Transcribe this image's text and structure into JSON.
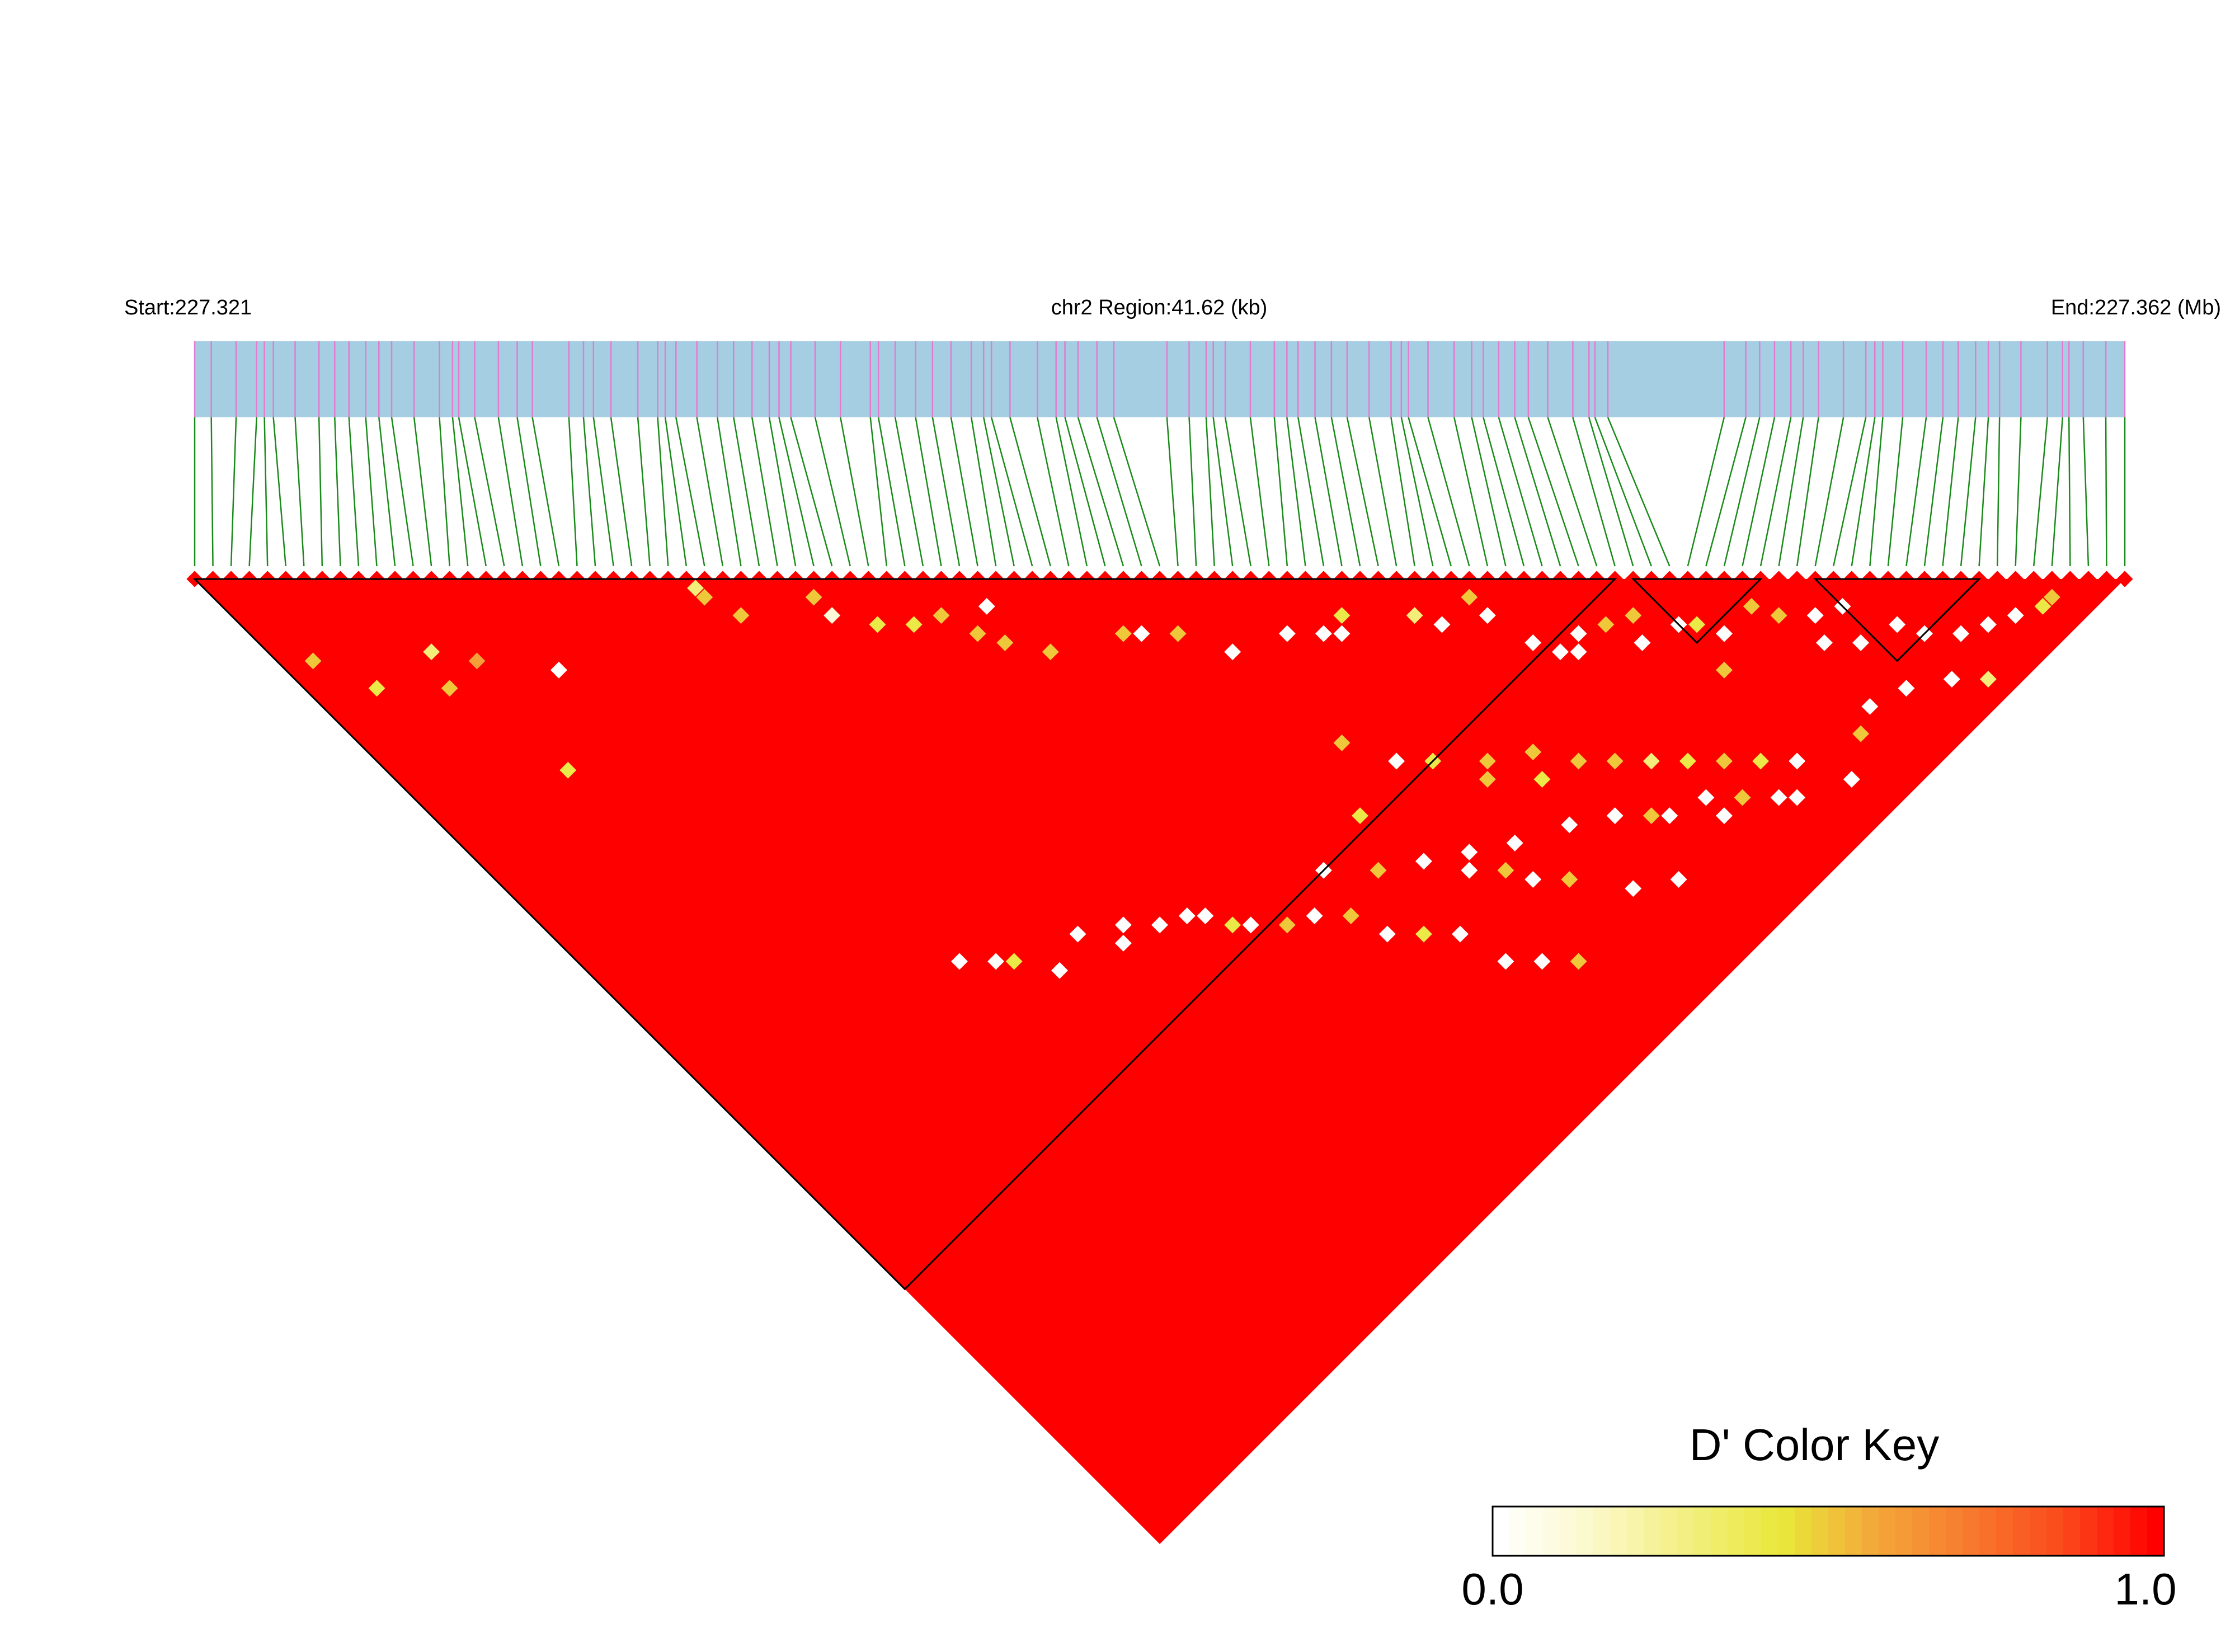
{
  "chart_data": {
    "type": "heatmap",
    "subtype": "linkage-disequilibrium-triangle",
    "region": {
      "start_label": "Start:227.321",
      "center_label": "chr2 Region:41.62 (kb)",
      "end_label": "End:227.362 (Mb)",
      "start_mb": 227.321,
      "end_mb": 227.362,
      "length_kb": 41.62,
      "chromosome": "chr2"
    },
    "snp_count": 107,
    "background_value": 1.0,
    "low_ld_cells": [
      [
        3,
        12,
        0.5
      ],
      [
        5,
        17,
        0.4
      ],
      [
        10,
        18,
        0.3
      ],
      [
        9,
        21,
        0.5
      ],
      [
        12,
        21,
        0.6
      ],
      [
        16,
        26,
        0.0
      ],
      [
        11,
        32,
        0.4
      ],
      [
        28,
        30,
        0.5
      ],
      [
        28,
        29,
        0.3
      ],
      [
        29,
        33,
        0.5
      ],
      [
        34,
        36,
        0.5
      ],
      [
        34,
        38,
        0.1
      ],
      [
        36,
        41,
        0.4
      ],
      [
        38,
        43,
        0.4
      ],
      [
        40,
        44,
        0.5
      ],
      [
        43,
        46,
        0.0
      ],
      [
        41,
        47,
        0.5
      ],
      [
        42,
        49,
        0.5
      ],
      [
        44,
        52,
        0.5
      ],
      [
        50,
        56,
        0.0
      ],
      [
        49,
        55,
        0.5
      ],
      [
        52,
        58,
        0.5
      ],
      [
        54,
        62,
        0.0
      ],
      [
        58,
        64,
        0.0
      ],
      [
        60,
        66,
        0.0
      ],
      [
        61,
        67,
        0.0
      ],
      [
        62,
        66,
        0.4
      ],
      [
        66,
        70,
        0.3
      ],
      [
        67,
        72,
        0.0
      ],
      [
        70,
        72,
        0.5
      ],
      [
        70,
        74,
        0.0
      ],
      [
        71,
        78,
        0.0
      ],
      [
        72,
        80,
        0.0
      ],
      [
        73,
        81,
        0.0
      ],
      [
        74,
        80,
        0.0
      ],
      [
        76,
        81,
        0.5
      ],
      [
        77,
        84,
        0.0
      ],
      [
        78,
        82,
        0.5
      ],
      [
        80,
        85,
        0.0
      ],
      [
        81,
        86,
        0.4
      ],
      [
        82,
        88,
        0.0
      ],
      [
        85,
        88,
        0.5
      ],
      [
        86,
        90,
        0.5
      ],
      [
        88,
        92,
        0.0
      ],
      [
        90,
        93,
        0.0
      ],
      [
        87,
        94,
        0.0
      ],
      [
        89,
        96,
        0.0
      ],
      [
        92,
        97,
        0.0
      ],
      [
        93,
        99,
        0.0
      ],
      [
        95,
        101,
        0.0
      ],
      [
        97,
        102,
        0.0
      ],
      [
        99,
        103,
        0.0
      ],
      [
        101,
        104,
        0.4
      ],
      [
        102,
        104,
        0.5
      ],
      [
        80,
        90,
        0.5
      ],
      [
        62,
        82,
        0.5
      ],
      [
        65,
        84,
        0.5
      ],
      [
        64,
        86,
        0.4
      ],
      [
        67,
        87,
        0.5
      ],
      [
        69,
        89,
        0.5
      ],
      [
        71,
        91,
        0.3
      ],
      [
        73,
        93,
        0.4
      ],
      [
        68,
        94,
        0.5
      ],
      [
        75,
        95,
        0.5
      ],
      [
        77,
        97,
        0.4
      ],
      [
        79,
        99,
        0.0
      ],
      [
        63,
        97,
        0.0
      ],
      [
        66,
        99,
        0.0
      ],
      [
        72,
        96,
        0.0
      ],
      [
        74,
        98,
        0.5
      ],
      [
        76,
        100,
        0.0
      ],
      [
        55,
        87,
        0.0
      ],
      [
        57,
        89,
        0.5
      ],
      [
        58,
        91,
        0.0
      ],
      [
        60,
        93,
        0.5
      ],
      [
        52,
        94,
        0.0
      ],
      [
        54,
        96,
        0.0
      ],
      [
        56,
        98,
        0.5
      ],
      [
        47,
        86,
        0.0
      ],
      [
        49,
        88,
        0.4
      ],
      [
        51,
        90,
        0.0
      ],
      [
        44,
        81,
        0.0
      ],
      [
        46,
        83,
        0.5
      ],
      [
        40,
        78,
        0.0
      ],
      [
        42,
        80,
        0.5
      ],
      [
        38,
        75,
        0.0
      ],
      [
        39,
        77,
        0.4
      ],
      [
        35,
        73,
        0.0
      ],
      [
        37,
        74,
        0.0
      ],
      [
        33,
        71,
        0.0
      ],
      [
        30,
        69,
        0.0
      ],
      [
        32,
        72,
        0.0
      ],
      [
        25,
        67,
        0.4
      ],
      [
        27,
        70,
        0.0
      ],
      [
        22,
        64,
        0.0
      ],
      [
        24,
        66,
        0.0
      ],
      [
        57,
        77,
        0.0
      ],
      [
        55,
        73,
        0.5
      ],
      [
        59,
        79,
        0.4
      ],
      [
        61,
        83,
        0.5
      ],
      [
        52,
        78,
        0.4
      ],
      [
        47,
        79,
        0.0
      ],
      [
        50,
        82,
        0.5
      ],
      [
        53,
        84,
        0.0
      ],
      [
        56,
        86,
        0.0
      ],
      [
        59,
        88,
        0.0
      ],
      [
        63,
        90,
        0.0
      ],
      [
        66,
        92,
        0.0
      ],
      [
        69,
        95,
        0.0
      ],
      [
        72,
        98,
        0.0
      ],
      [
        77,
        101,
        0.0
      ],
      [
        81,
        103,
        0.0
      ],
      [
        84,
        101,
        0.5
      ],
      [
        86,
        100,
        0.0
      ],
      [
        89,
        101,
        0.0
      ],
      [
        92,
        103,
        0.0
      ],
      [
        94,
        105,
        0.3
      ]
    ],
    "blocks": [
      {
        "from": 1,
        "to": 79
      },
      {
        "from": 80,
        "to": 87
      },
      {
        "from": 90,
        "to": 99
      }
    ],
    "color_key": {
      "title": "D' Color Key",
      "min_label": "0.0",
      "max_label": "1.0",
      "min": 0.0,
      "max": 1.0,
      "stops": [
        "#ffffff",
        "#fbf8c8",
        "#f3ef80",
        "#e9e83a",
        "#f3a83a",
        "#f77a2e",
        "#fb4a1c",
        "#ff0000"
      ]
    },
    "colors": {
      "track": "#a6cee3",
      "snp_tick": "#e37bd0",
      "connector": "#1a8a1a",
      "high_ld": "#ff0000"
    },
    "xlabel": "",
    "ylabel": ""
  }
}
